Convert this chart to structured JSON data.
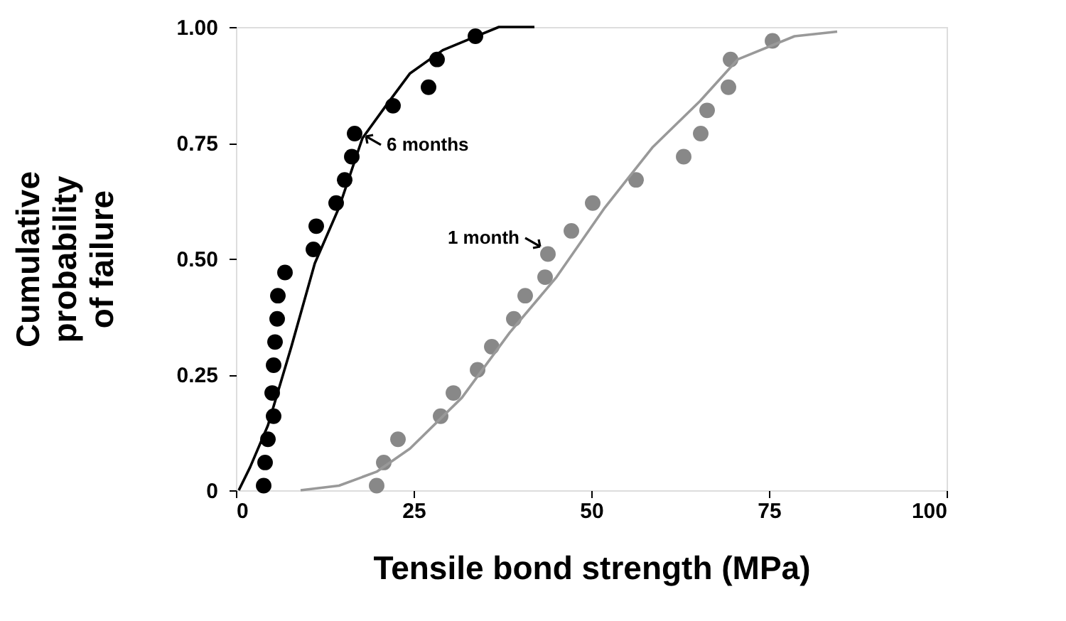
{
  "chart_data": {
    "type": "scatter",
    "xlabel": "Tensile bond strength (MPa)",
    "ylabel": "Cumulative probability of failure",
    "xlim": [
      0,
      100
    ],
    "xticks": [
      0,
      25,
      50,
      75,
      100
    ],
    "ylim": [
      0,
      1
    ],
    "yticks": [
      {
        "value": 0,
        "label": "0"
      },
      {
        "value": 0.25,
        "label": "0.25"
      },
      {
        "value": 0.5,
        "label": "0.50"
      },
      {
        "value": 0.75,
        "label": "0.75"
      },
      {
        "value": 1,
        "label": "1.00"
      }
    ],
    "series": [
      {
        "marker": "circle",
        "color": "#000000",
        "x": [
          3.9,
          4.1,
          4.5,
          5.3,
          5.1,
          5.3,
          5.5,
          5.8,
          5.9,
          6.9,
          10.9,
          11.3,
          14.1,
          15.3,
          16.3,
          16.7,
          22.1,
          27.1,
          28.3,
          33.7
        ],
        "values": [
          0.01,
          0.06,
          0.11,
          0.16,
          0.21,
          0.27,
          0.32,
          0.37,
          0.42,
          0.47,
          0.52,
          0.57,
          0.62,
          0.67,
          0.72,
          0.77,
          0.83,
          0.87,
          0.93,
          0.98
        ]
      },
      {
        "type": "line",
        "marker": "none",
        "line_style": "solid",
        "color": "#000000",
        "x": [
          0.4,
          2,
          4.5,
          7.8,
          11.1,
          14.5,
          17.8,
          21.1,
          24.5,
          29.1,
          33.8,
          37,
          42
        ],
        "values": [
          0,
          0.05,
          0.14,
          0.31,
          0.49,
          0.61,
          0.76,
          0.83,
          0.9,
          0.95,
          0.98,
          1,
          1
        ]
      },
      {
        "marker": "circle",
        "color": "#888888",
        "x": [
          19.8,
          20.8,
          22.8,
          28.8,
          30.6,
          34.0,
          36.0,
          39.1,
          40.7,
          43.5,
          43.9,
          47.2,
          50.2,
          56.3,
          63.0,
          65.4,
          66.3,
          69.3,
          69.6,
          75.5
        ],
        "values": [
          0.01,
          0.06,
          0.11,
          0.16,
          0.21,
          0.26,
          0.31,
          0.37,
          0.42,
          0.46,
          0.51,
          0.56,
          0.62,
          0.67,
          0.72,
          0.77,
          0.82,
          0.87,
          0.93,
          0.97
        ]
      },
      {
        "type": "line",
        "marker": "none",
        "line_style": "solid",
        "color": "#999999",
        "x": [
          9.1,
          14.5,
          19.8,
          24.5,
          31.8,
          38.5,
          45.1,
          51.9,
          58.6,
          65.3,
          70.6,
          78.6,
          84.6
        ],
        "values": [
          0,
          0.01,
          0.04,
          0.09,
          0.2,
          0.34,
          0.46,
          0.61,
          0.74,
          0.84,
          0.93,
          0.98,
          0.99
        ]
      }
    ],
    "annotations": [
      {
        "text": "6 months",
        "x": 17.6,
        "y": 0.77
      },
      {
        "text": "1 month",
        "x": 43.5,
        "y": 0.52
      }
    ]
  }
}
